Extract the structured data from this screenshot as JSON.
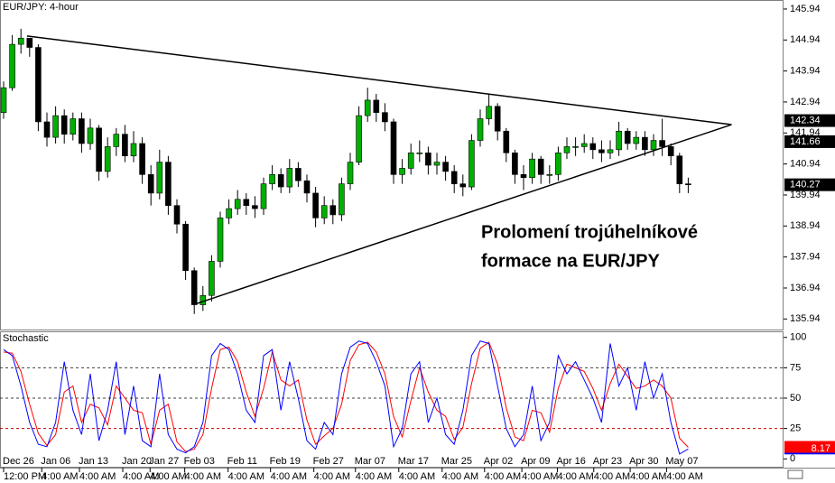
{
  "chart_data": [
    {
      "type": "candlestick",
      "title": "EUR/JPY: 4-hour",
      "open": [
        142.6,
        143.4,
        144.8,
        145.0,
        144.7,
        142.3,
        141.8,
        142.5,
        141.9,
        142.4,
        141.6,
        142.1,
        140.7,
        141.5,
        141.9,
        141.2,
        141.6,
        140.6,
        140.0,
        141.0,
        139.6,
        139.0,
        137.5,
        136.4,
        136.7,
        137.8,
        139.2,
        139.5,
        139.8,
        139.6,
        139.5,
        140.3,
        140.6,
        140.2,
        140.8,
        140.4,
        140.0,
        139.2,
        139.6,
        139.3,
        140.3,
        141.0,
        142.5,
        143.0,
        142.6,
        142.3,
        140.6,
        140.8,
        141.3,
        141.3,
        140.9,
        141.0,
        140.7,
        140.3,
        140.2,
        141.7,
        142.4,
        142.8,
        142.0,
        141.3,
        140.6,
        140.5,
        141.1,
        140.6,
        140.6,
        141.3,
        141.5,
        141.5,
        141.6,
        141.4,
        141.3,
        141.4,
        142.0,
        141.6,
        141.8,
        141.4,
        141.7,
        141.5,
        141.2,
        140.3
      ],
      "high": [
        143.6,
        145.1,
        145.3,
        145.0,
        144.8,
        142.6,
        142.8,
        142.7,
        142.6,
        142.6,
        142.4,
        142.2,
        141.8,
        142.1,
        142.2,
        142.0,
        141.8,
        140.9,
        141.4,
        141.2,
        139.8,
        139.1,
        137.6,
        137.0,
        138.0,
        139.4,
        139.8,
        140.1,
        140.0,
        139.9,
        140.5,
        140.9,
        140.8,
        141.1,
        141.0,
        140.6,
        140.2,
        139.9,
        139.8,
        140.5,
        141.3,
        142.8,
        143.4,
        143.2,
        142.9,
        142.4,
        141.1,
        141.6,
        141.7,
        141.5,
        141.3,
        141.2,
        140.9,
        140.6,
        141.9,
        142.7,
        143.2,
        142.9,
        142.1,
        141.4,
        140.9,
        141.3,
        141.2,
        140.9,
        141.5,
        141.8,
        141.8,
        141.9,
        141.8,
        141.7,
        141.7,
        142.3,
        142.1,
        142.0,
        142.0,
        141.9,
        142.4,
        141.6,
        141.3,
        140.5
      ],
      "low": [
        142.4,
        143.3,
        144.5,
        144.4,
        142.0,
        141.5,
        141.6,
        141.6,
        141.7,
        141.3,
        141.4,
        140.4,
        140.5,
        141.2,
        141.0,
        141.0,
        140.3,
        139.6,
        139.8,
        139.3,
        138.7,
        137.2,
        136.1,
        136.2,
        136.5,
        137.6,
        139.0,
        139.3,
        139.3,
        139.2,
        139.3,
        140.1,
        140.0,
        140.0,
        140.2,
        139.7,
        138.9,
        139.0,
        139.0,
        139.1,
        140.1,
        140.9,
        142.3,
        142.3,
        142.0,
        140.3,
        140.3,
        140.6,
        141.0,
        140.6,
        140.6,
        140.4,
        140.0,
        139.9,
        140.1,
        141.5,
        142.2,
        141.7,
        141.0,
        140.3,
        140.1,
        140.3,
        140.3,
        140.3,
        140.4,
        141.1,
        141.2,
        141.3,
        141.1,
        141.0,
        141.1,
        141.2,
        141.4,
        141.4,
        141.2,
        141.2,
        141.2,
        140.9,
        140.0,
        140.0
      ],
      "close": [
        143.4,
        144.8,
        145.0,
        144.7,
        142.3,
        141.8,
        142.5,
        141.9,
        142.4,
        141.6,
        142.1,
        140.7,
        141.5,
        141.9,
        141.2,
        141.6,
        140.6,
        140.0,
        141.0,
        139.6,
        139.0,
        137.5,
        136.4,
        136.7,
        137.8,
        139.2,
        139.5,
        139.8,
        139.6,
        139.5,
        140.3,
        140.6,
        140.2,
        140.8,
        140.4,
        140.0,
        139.2,
        139.6,
        139.3,
        140.3,
        141.0,
        142.5,
        143.0,
        142.6,
        142.3,
        140.6,
        140.8,
        141.3,
        141.3,
        140.9,
        141.0,
        140.7,
        140.3,
        140.2,
        141.7,
        142.4,
        142.8,
        142.0,
        141.3,
        140.6,
        140.5,
        141.1,
        140.6,
        140.6,
        141.3,
        141.5,
        141.5,
        141.6,
        141.4,
        141.3,
        141.4,
        142.0,
        141.6,
        141.8,
        141.4,
        141.7,
        141.5,
        141.2,
        140.3,
        140.27
      ],
      "up_color": "#00b000",
      "down_color": "#000000",
      "ylim": [
        135.6,
        146.23
      ],
      "yticks": [
        145.94,
        144.94,
        143.94,
        142.94,
        141.94,
        140.94,
        139.94,
        138.94,
        137.94,
        136.94,
        135.94
      ],
      "trendlines": [
        {
          "x": [
            2.7,
            84
          ],
          "y": [
            145.07,
            142.21
          ],
          "color": "#000000"
        },
        {
          "x": [
            22,
            84
          ],
          "y": [
            136.41,
            142.21
          ],
          "color": "#000000"
        }
      ],
      "price_labels": [
        142.34,
        141.66
      ],
      "annotation": [
        "Prolomení trojúhelníkové",
        "formace na EUR/JPY"
      ]
    },
    {
      "type": "line",
      "title": "Stochastic",
      "series": [
        {
          "color": "#0000ff",
          "values": [
            90,
            85,
            60,
            30,
            12,
            10,
            30,
            80,
            40,
            20,
            70,
            15,
            40,
            80,
            20,
            60,
            15,
            10,
            70,
            20,
            8,
            5,
            10,
            30,
            85,
            95,
            90,
            70,
            40,
            30,
            85,
            90,
            40,
            80,
            50,
            15,
            8,
            30,
            20,
            70,
            92,
            97,
            95,
            80,
            60,
            10,
            25,
            70,
            80,
            30,
            50,
            20,
            12,
            40,
            85,
            97,
            95,
            60,
            25,
            10,
            20,
            60,
            15,
            30,
            85,
            70,
            80,
            65,
            50,
            30,
            95,
            60,
            75,
            40,
            80,
            50,
            70,
            30,
            4,
            8.17
          ]
        },
        {
          "color": "#ff0000",
          "values": [
            88,
            87,
            72,
            45,
            21,
            11,
            20,
            55,
            60,
            30,
            45,
            42,
            28,
            60,
            50,
            40,
            38,
            12,
            40,
            45,
            14,
            6,
            8,
            20,
            58,
            90,
            92,
            80,
            55,
            35,
            58,
            88,
            65,
            60,
            65,
            32,
            12,
            19,
            25,
            45,
            81,
            94,
            96,
            88,
            70,
            35,
            18,
            48,
            75,
            55,
            40,
            35,
            16,
            26,
            62,
            91,
            96,
            78,
            42,
            18,
            15,
            40,
            38,
            22,
            58,
            78,
            75,
            72,
            58,
            40,
            62,
            78,
            68,
            58,
            60,
            65,
            60,
            50,
            17,
            9.5
          ]
        }
      ],
      "ylim": [
        -5,
        105
      ],
      "yticks": [
        100,
        75,
        50,
        25,
        0
      ],
      "levels": [
        {
          "value": 75,
          "color": "#404040"
        },
        {
          "value": 50,
          "color": "#404040"
        },
        {
          "value": 25,
          "color": "#c00000"
        }
      ],
      "xticks": [
        {
          "value": 0,
          "label": "Dec 26"
        },
        {
          "value": 4.4,
          "label": "Jan 06"
        },
        {
          "value": 8.75,
          "label": "Jan 13"
        },
        {
          "value": 13.75,
          "label": "Jan 20"
        },
        {
          "value": 16.9,
          "label": "Jan 27"
        },
        {
          "value": 20.9,
          "label": "Feb 03"
        },
        {
          "value": 25.9,
          "label": "Feb 11"
        },
        {
          "value": 30.8,
          "label": "Feb 19"
        },
        {
          "value": 35.8,
          "label": "Feb 27"
        },
        {
          "value": 40.6,
          "label": "Mar 07"
        },
        {
          "value": 45.6,
          "label": "Mar 17"
        },
        {
          "value": 50.6,
          "label": "Mar 25"
        },
        {
          "value": 55.5,
          "label": "Apr 02"
        },
        {
          "value": 59.8,
          "label": "Apr 09"
        },
        {
          "value": 63.9,
          "label": "Apr 16"
        },
        {
          "value": 68.1,
          "label": "Apr 23"
        },
        {
          "value": 72.3,
          "label": "Apr 30"
        },
        {
          "value": 76.5,
          "label": "May 07"
        }
      ],
      "xtick_sublabels": [
        "12:00 PM",
        "4:00 AM",
        "4:00 AM",
        "4:00 AM",
        "4:00 AM",
        "4:00 AM",
        "4:00 AM",
        "4:00 AM",
        "4:00 AM",
        "4:00 AM",
        "4:00 AM",
        "4:00 AM",
        "4:00 AM",
        "4:00 AM",
        "4:00 AM",
        "4:00 AM",
        "4:00 AM",
        "4:00 AM"
      ]
    }
  ]
}
